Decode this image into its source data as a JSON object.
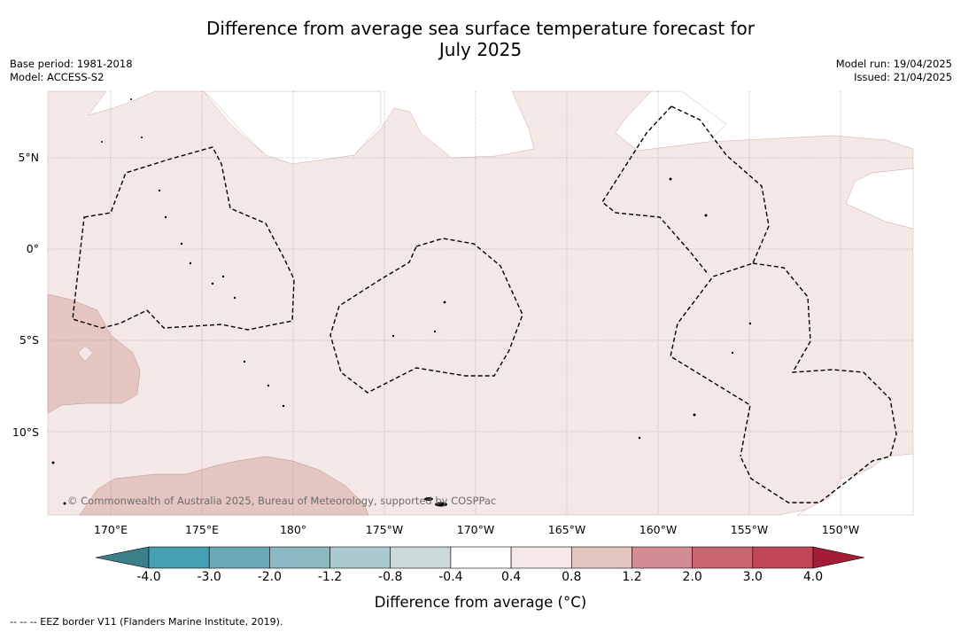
{
  "title_line1": "Difference from average sea surface temperature forecast for",
  "title_line2": "July 2025",
  "meta_left": {
    "base_period": "Base period: 1981-2018",
    "model": "Model: ACCESS-S2"
  },
  "meta_right": {
    "model_run": "Model run: 19/04/2025",
    "issued": "Issued: 21/04/2025"
  },
  "lat_labels": [
    "5°N",
    "0°",
    "5°S",
    "10°S"
  ],
  "lon_labels": [
    "170°E",
    "175°E",
    "180°",
    "175°W",
    "170°W",
    "165°W",
    "160°W",
    "155°W",
    "150°W"
  ],
  "copyright": "© Commonwealth of Australia 2025, Bureau of Meteorology, supported by COSPPac",
  "colorbar": {
    "ticks": [
      "-4.0",
      "-3.0",
      "-2.0",
      "-1.2",
      "-0.8",
      "-0.4",
      "0.4",
      "0.8",
      "1.2",
      "2.0",
      "3.0",
      "4.0"
    ],
    "colors": [
      "#3b7f89",
      "#45a1b1",
      "#6aaab8",
      "#8bb8c3",
      "#abcacf",
      "#cbd9da",
      "#ffffff",
      "#f5e8e6",
      "#e5c5c0",
      "#d38c94",
      "#c96670",
      "#be4655",
      "#a51c36"
    ],
    "label": "Difference from average ($^\\circ$C)",
    "label_display": "Difference from average (°C)"
  },
  "footer": "-- -- -- EEZ border V11 (Flanders Marine Institute, 2019).",
  "colors": {
    "light_anomaly": "#f4e8e6",
    "moderate_anomaly": "#e5c5c0",
    "neutral": "#ffffff",
    "grid": "#888888",
    "eez": "#000000"
  }
}
